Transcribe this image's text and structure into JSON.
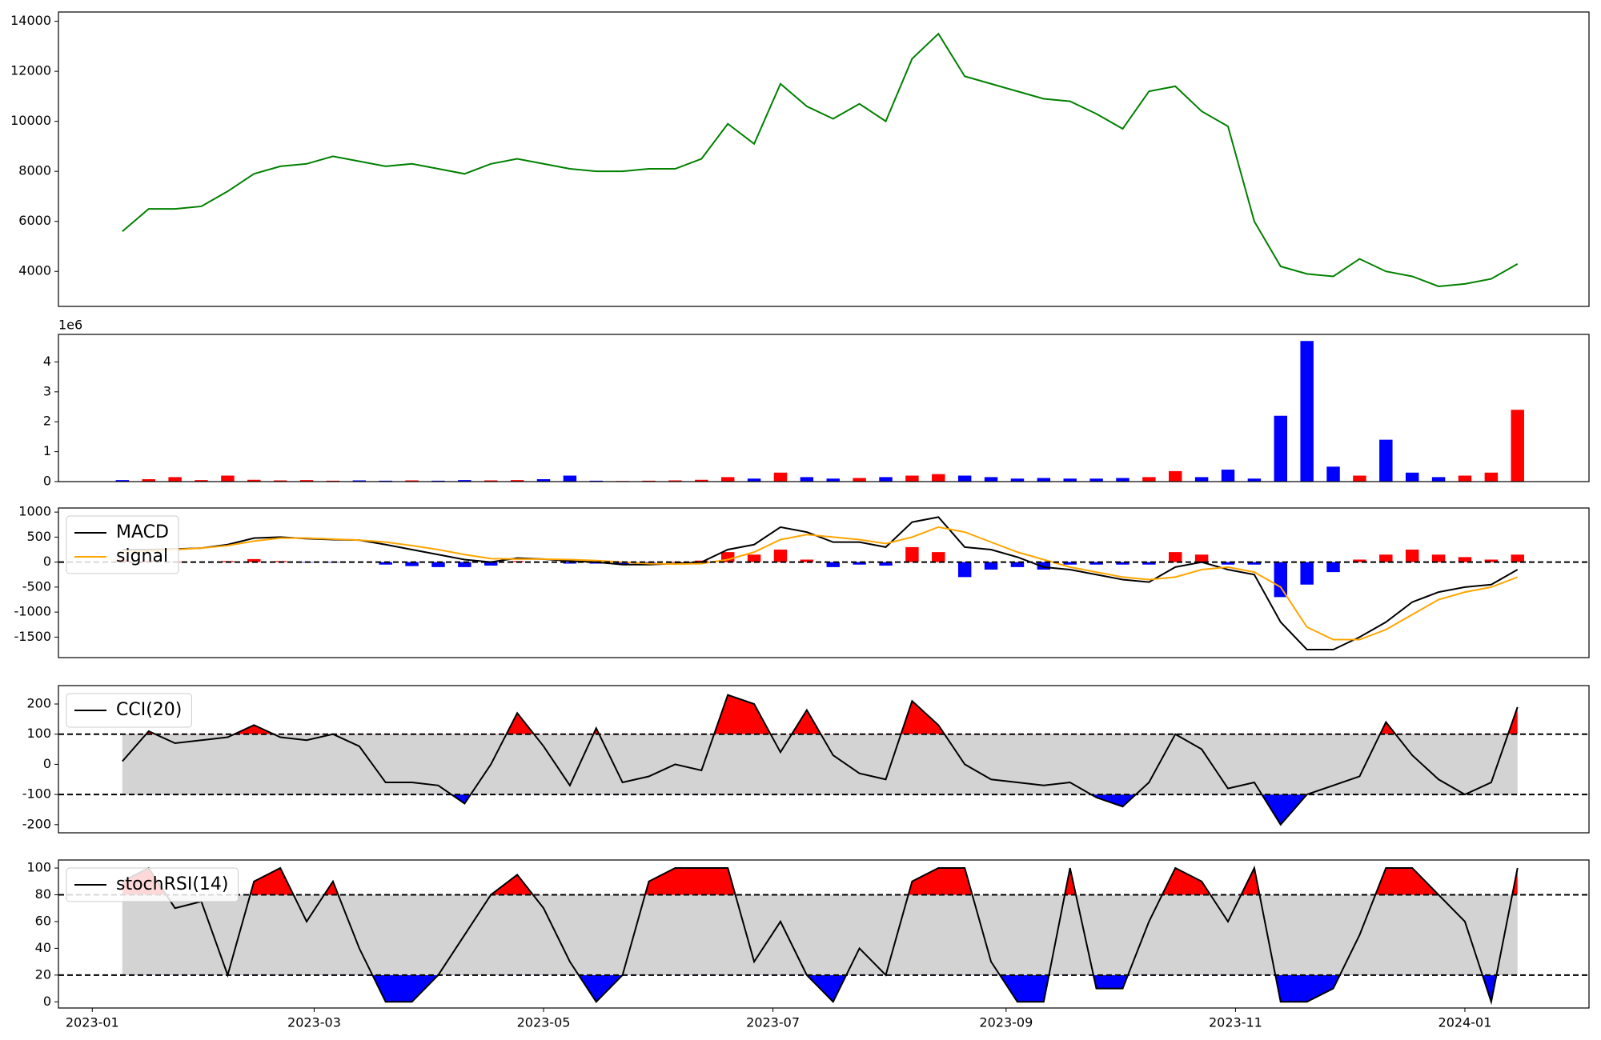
{
  "chart_data": [
    {
      "type": "line",
      "xlim": [
        "2022-12-23",
        "2024-02-03"
      ],
      "ylim": [
        2600,
        14370
      ],
      "yticks": [
        4000,
        6000,
        8000,
        10000,
        12000,
        14000
      ],
      "color": "green",
      "x": [
        "2023-01-09",
        "2023-01-16",
        "2023-01-23",
        "2023-01-30",
        "2023-02-06",
        "2023-02-13",
        "2023-02-20",
        "2023-02-27",
        "2023-03-06",
        "2023-03-13",
        "2023-03-20",
        "2023-03-27",
        "2023-04-03",
        "2023-04-10",
        "2023-04-17",
        "2023-04-24",
        "2023-05-01",
        "2023-05-08",
        "2023-05-15",
        "2023-05-22",
        "2023-05-29",
        "2023-06-05",
        "2023-06-12",
        "2023-06-19",
        "2023-06-26",
        "2023-07-03",
        "2023-07-10",
        "2023-07-17",
        "2023-07-24",
        "2023-07-31",
        "2023-08-07",
        "2023-08-14",
        "2023-08-21",
        "2023-08-28",
        "2023-09-04",
        "2023-09-11",
        "2023-09-18",
        "2023-09-25",
        "2023-10-02",
        "2023-10-09",
        "2023-10-16",
        "2023-10-23",
        "2023-10-30",
        "2023-11-06",
        "2023-11-13",
        "2023-11-20",
        "2023-11-27",
        "2023-12-04",
        "2023-12-11",
        "2023-12-18",
        "2023-12-25",
        "2024-01-01",
        "2024-01-08",
        "2024-01-15"
      ],
      "values": [
        5600,
        6500,
        6500,
        6600,
        7200,
        7900,
        8200,
        8300,
        8600,
        8400,
        8200,
        8300,
        8100,
        7900,
        8300,
        8500,
        8300,
        8100,
        8000,
        8000,
        8100,
        8100,
        8500,
        9900,
        9100,
        11500,
        10600,
        10100,
        10700,
        10000,
        12500,
        13500,
        11800,
        11500,
        11200,
        10900,
        10800,
        10300,
        9700,
        11200,
        11400,
        10400,
        9800,
        6000,
        4200,
        3900,
        3800,
        4500,
        4000,
        3800,
        3400,
        3500,
        3700,
        4300
      ]
    },
    {
      "type": "bar",
      "xlim": [
        "2022-12-23",
        "2024-02-03"
      ],
      "ylim": [
        0,
        4.92
      ],
      "yticks": [
        0,
        1,
        2,
        3,
        4
      ],
      "offset_text": "1e6",
      "x": [
        "2023-01-09",
        "2023-01-16",
        "2023-01-23",
        "2023-01-30",
        "2023-02-06",
        "2023-02-13",
        "2023-02-20",
        "2023-02-27",
        "2023-03-06",
        "2023-03-13",
        "2023-03-20",
        "2023-03-27",
        "2023-04-03",
        "2023-04-10",
        "2023-04-17",
        "2023-04-24",
        "2023-05-01",
        "2023-05-08",
        "2023-05-15",
        "2023-05-22",
        "2023-05-29",
        "2023-06-05",
        "2023-06-12",
        "2023-06-19",
        "2023-06-26",
        "2023-07-03",
        "2023-07-10",
        "2023-07-17",
        "2023-07-24",
        "2023-07-31",
        "2023-08-07",
        "2023-08-14",
        "2023-08-21",
        "2023-08-28",
        "2023-09-04",
        "2023-09-11",
        "2023-09-18",
        "2023-09-25",
        "2023-10-02",
        "2023-10-09",
        "2023-10-16",
        "2023-10-23",
        "2023-10-30",
        "2023-11-06",
        "2023-11-13",
        "2023-11-20",
        "2023-11-27",
        "2023-12-04",
        "2023-12-11",
        "2023-12-18",
        "2023-12-25",
        "2024-01-01",
        "2024-01-08",
        "2024-01-15"
      ],
      "values": [
        0.05,
        0.08,
        0.15,
        0.05,
        0.2,
        0.06,
        0.04,
        0.05,
        0.03,
        0.04,
        0.03,
        0.04,
        0.03,
        0.05,
        0.04,
        0.05,
        0.08,
        0.2,
        0.03,
        0.02,
        0.03,
        0.04,
        0.06,
        0.15,
        0.1,
        0.3,
        0.15,
        0.1,
        0.12,
        0.15,
        0.2,
        0.25,
        0.2,
        0.15,
        0.1,
        0.12,
        0.1,
        0.1,
        0.12,
        0.15,
        0.35,
        0.15,
        0.4,
        0.1,
        2.2,
        4.7,
        0.5,
        0.2,
        1.4,
        0.3,
        0.15,
        0.2,
        0.3,
        2.4
      ],
      "colors": [
        "blue",
        "red",
        "red",
        "red",
        "red",
        "red",
        "red",
        "red",
        "red",
        "blue",
        "blue",
        "red",
        "blue",
        "blue",
        "red",
        "red",
        "blue",
        "blue",
        "blue",
        "red",
        "red",
        "red",
        "red",
        "red",
        "blue",
        "red",
        "blue",
        "blue",
        "red",
        "blue",
        "red",
        "red",
        "blue",
        "blue",
        "blue",
        "blue",
        "blue",
        "blue",
        "blue",
        "red",
        "red",
        "blue",
        "blue",
        "blue",
        "blue",
        "blue",
        "blue",
        "red",
        "blue",
        "blue",
        "blue",
        "red",
        "red",
        "red"
      ]
    },
    {
      "type": "line",
      "xlim": [
        "2022-12-23",
        "2024-02-03"
      ],
      "ylim": [
        -1910,
        1082
      ],
      "yticks": [
        -1500,
        -1000,
        -500,
        0,
        500,
        1000
      ],
      "levels": [
        0
      ],
      "x": [
        "2023-01-09",
        "2023-01-16",
        "2023-01-23",
        "2023-01-30",
        "2023-02-06",
        "2023-02-13",
        "2023-02-20",
        "2023-02-27",
        "2023-03-06",
        "2023-03-13",
        "2023-03-20",
        "2023-03-27",
        "2023-04-03",
        "2023-04-10",
        "2023-04-17",
        "2023-04-24",
        "2023-05-01",
        "2023-05-08",
        "2023-05-15",
        "2023-05-22",
        "2023-05-29",
        "2023-06-05",
        "2023-06-12",
        "2023-06-19",
        "2023-06-26",
        "2023-07-03",
        "2023-07-10",
        "2023-07-17",
        "2023-07-24",
        "2023-07-31",
        "2023-08-07",
        "2023-08-14",
        "2023-08-21",
        "2023-08-28",
        "2023-09-04",
        "2023-09-11",
        "2023-09-18",
        "2023-09-25",
        "2023-10-02",
        "2023-10-09",
        "2023-10-16",
        "2023-10-23",
        "2023-10-30",
        "2023-11-06",
        "2023-11-13",
        "2023-11-20",
        "2023-11-27",
        "2023-12-04",
        "2023-12-11",
        "2023-12-18",
        "2023-12-25",
        "2024-01-01",
        "2024-01-08",
        "2024-01-15"
      ],
      "histogram": {
        "pos_color": "red",
        "neg_color": "blue",
        "values": [
          50,
          30,
          10,
          0,
          20,
          60,
          20,
          -10,
          -10,
          0,
          -50,
          -80,
          -100,
          -100,
          -70,
          20,
          0,
          -30,
          -30,
          -50,
          -20,
          10,
          30,
          200,
          150,
          250,
          50,
          -100,
          -50,
          -70,
          300,
          200,
          -300,
          -150,
          -100,
          -150,
          -50,
          -50,
          -50,
          -50,
          200,
          150,
          -50,
          -50,
          -700,
          -450,
          -200,
          50,
          150,
          250,
          150,
          100,
          50,
          150
        ]
      },
      "series": [
        {
          "name": "MACD",
          "color": "black",
          "values": [
            250,
            250,
            260,
            280,
            350,
            480,
            500,
            470,
            450,
            440,
            350,
            250,
            150,
            50,
            0,
            80,
            60,
            20,
            0,
            -50,
            -50,
            -30,
            0,
            250,
            350,
            700,
            600,
            400,
            400,
            300,
            800,
            900,
            300,
            250,
            100,
            -100,
            -150,
            -250,
            -350,
            -400,
            -100,
            0,
            -150,
            -250,
            -1200,
            -1750,
            -1750,
            -1500,
            -1200,
            -800,
            -600,
            -500,
            -450,
            -150
          ]
        },
        {
          "name": "signal",
          "color": "orange",
          "values": [
            200,
            220,
            250,
            280,
            330,
            420,
            480,
            480,
            460,
            440,
            400,
            330,
            250,
            150,
            70,
            60,
            60,
            50,
            30,
            0,
            -30,
            -40,
            -30,
            50,
            200,
            450,
            550,
            500,
            450,
            370,
            500,
            700,
            600,
            400,
            200,
            50,
            -100,
            -200,
            -300,
            -350,
            -300,
            -150,
            -100,
            -200,
            -500,
            -1300,
            -1550,
            -1550,
            -1350,
            -1050,
            -750,
            -600,
            -500,
            -300
          ]
        }
      ]
    },
    {
      "type": "line",
      "xlim": [
        "2022-12-23",
        "2024-02-03"
      ],
      "ylim": [
        -227,
        261
      ],
      "yticks": [
        -200,
        -100,
        0,
        100,
        200
      ],
      "levels": [
        -100,
        100
      ],
      "band_fill": "lightgray",
      "upper_fill": "red",
      "lower_fill": "blue",
      "x": [
        "2023-01-09",
        "2023-01-16",
        "2023-01-23",
        "2023-01-30",
        "2023-02-06",
        "2023-02-13",
        "2023-02-20",
        "2023-02-27",
        "2023-03-06",
        "2023-03-13",
        "2023-03-20",
        "2023-03-27",
        "2023-04-03",
        "2023-04-10",
        "2023-04-17",
        "2023-04-24",
        "2023-05-01",
        "2023-05-08",
        "2023-05-15",
        "2023-05-22",
        "2023-05-29",
        "2023-06-05",
        "2023-06-12",
        "2023-06-19",
        "2023-06-26",
        "2023-07-03",
        "2023-07-10",
        "2023-07-17",
        "2023-07-24",
        "2023-07-31",
        "2023-08-07",
        "2023-08-14",
        "2023-08-21",
        "2023-08-28",
        "2023-09-04",
        "2023-09-11",
        "2023-09-18",
        "2023-09-25",
        "2023-10-02",
        "2023-10-09",
        "2023-10-16",
        "2023-10-23",
        "2023-10-30",
        "2023-11-06",
        "2023-11-13",
        "2023-11-20",
        "2023-11-27",
        "2023-12-04",
        "2023-12-11",
        "2023-12-18",
        "2023-12-25",
        "2024-01-01",
        "2024-01-08",
        "2024-01-15"
      ],
      "series": [
        {
          "name": "CCI(20)",
          "color": "black",
          "values": [
            10,
            110,
            70,
            80,
            90,
            130,
            90,
            80,
            100,
            60,
            -60,
            -60,
            -70,
            -130,
            0,
            170,
            60,
            -70,
            120,
            -60,
            -40,
            0,
            -20,
            230,
            200,
            40,
            180,
            30,
            -30,
            -50,
            210,
            130,
            0,
            -50,
            -60,
            -70,
            -60,
            -110,
            -140,
            -60,
            100,
            50,
            -80,
            -60,
            -200,
            -100,
            -70,
            -40,
            140,
            30,
            -50,
            -100,
            -60,
            190
          ]
        }
      ]
    },
    {
      "type": "line",
      "xlim": [
        "2022-12-23",
        "2024-02-03"
      ],
      "ylim": [
        -4.6,
        106
      ],
      "yticks": [
        0,
        20,
        40,
        60,
        80,
        100
      ],
      "levels": [
        20,
        80
      ],
      "band_fill": "lightgray",
      "upper_fill": "red",
      "lower_fill": "blue",
      "xticks": [
        "2023-01",
        "2023-03",
        "2023-05",
        "2023-07",
        "2023-09",
        "2023-11",
        "2024-01"
      ],
      "x": [
        "2023-01-09",
        "2023-01-16",
        "2023-01-23",
        "2023-01-30",
        "2023-02-06",
        "2023-02-13",
        "2023-02-20",
        "2023-02-27",
        "2023-03-06",
        "2023-03-13",
        "2023-03-20",
        "2023-03-27",
        "2023-04-03",
        "2023-04-10",
        "2023-04-17",
        "2023-04-24",
        "2023-05-01",
        "2023-05-08",
        "2023-05-15",
        "2023-05-22",
        "2023-05-29",
        "2023-06-05",
        "2023-06-12",
        "2023-06-19",
        "2023-06-26",
        "2023-07-03",
        "2023-07-10",
        "2023-07-17",
        "2023-07-24",
        "2023-07-31",
        "2023-08-07",
        "2023-08-14",
        "2023-08-21",
        "2023-08-28",
        "2023-09-04",
        "2023-09-11",
        "2023-09-18",
        "2023-09-25",
        "2023-10-02",
        "2023-10-09",
        "2023-10-16",
        "2023-10-23",
        "2023-10-30",
        "2023-11-06",
        "2023-11-13",
        "2023-11-20",
        "2023-11-27",
        "2023-12-04",
        "2023-12-11",
        "2023-12-18",
        "2023-12-25",
        "2024-01-01",
        "2024-01-08",
        "2024-01-15"
      ],
      "series": [
        {
          "name": "stochRSI(14)",
          "color": "black",
          "values": [
            90,
            100,
            70,
            75,
            20,
            90,
            100,
            60,
            90,
            40,
            0,
            0,
            20,
            50,
            80,
            95,
            70,
            30,
            0,
            20,
            90,
            100,
            100,
            100,
            30,
            60,
            20,
            0,
            40,
            20,
            90,
            100,
            100,
            30,
            0,
            0,
            100,
            10,
            10,
            60,
            100,
            90,
            60,
            100,
            0,
            0,
            10,
            50,
            100,
            100,
            80,
            60,
            0,
            100
          ]
        }
      ]
    }
  ]
}
